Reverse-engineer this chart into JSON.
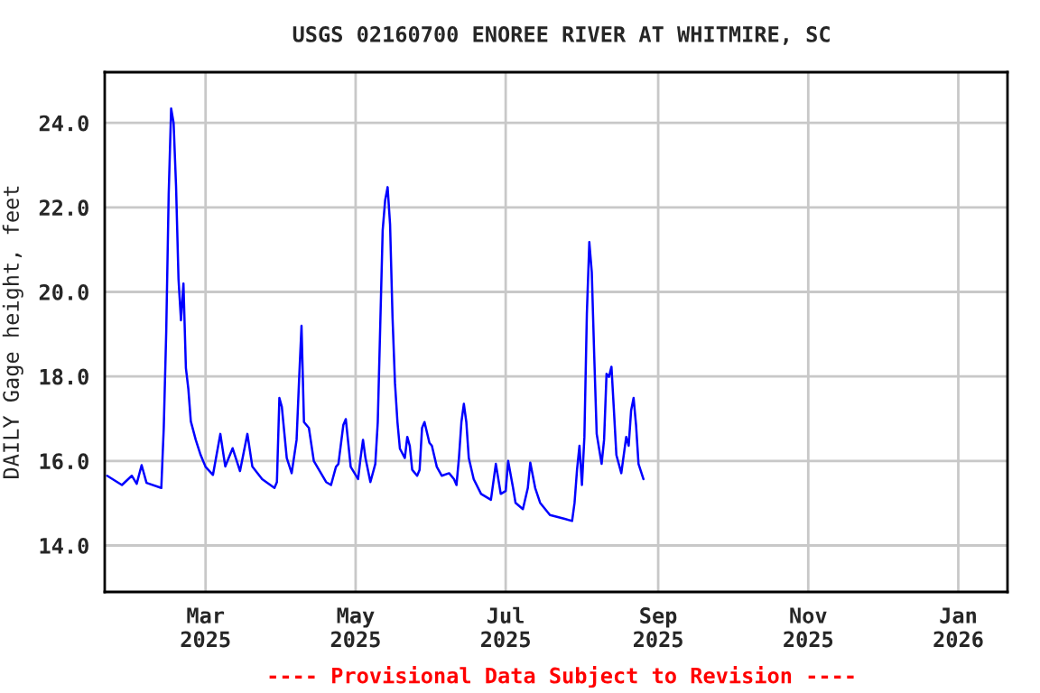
{
  "chart_data": {
    "type": "line",
    "title": "USGS 02160700 ENOREE RIVER AT WHITMIRE, SC",
    "ylabel": "DAILY Gage height, feet",
    "annotations": [
      "---- Provisional Data Subject to Revision ----"
    ],
    "x": [
      "2025-01-20",
      "2025-01-26",
      "2025-01-30",
      "2025-02-01",
      "2025-02-03",
      "2025-02-05",
      "2025-02-11",
      "2025-02-12",
      "2025-02-13",
      "2025-02-14",
      "2025-02-15",
      "2025-02-16",
      "2025-02-17",
      "2025-02-18",
      "2025-02-19",
      "2025-02-20",
      "2025-02-21",
      "2025-02-22",
      "2025-02-23",
      "2025-02-25",
      "2025-02-27",
      "2025-03-01",
      "2025-03-04",
      "2025-03-07",
      "2025-03-09",
      "2025-03-12",
      "2025-03-15",
      "2025-03-18",
      "2025-03-20",
      "2025-03-24",
      "2025-03-29",
      "2025-03-30",
      "2025-03-31",
      "2025-04-01",
      "2025-04-03",
      "2025-04-05",
      "2025-04-07",
      "2025-04-08",
      "2025-04-09",
      "2025-04-10",
      "2025-04-12",
      "2025-04-14",
      "2025-04-19",
      "2025-04-21",
      "2025-04-23",
      "2025-04-24",
      "2025-04-26",
      "2025-04-27",
      "2025-04-29",
      "2025-05-02",
      "2025-05-03",
      "2025-05-04",
      "2025-05-05",
      "2025-05-07",
      "2025-05-09",
      "2025-05-10",
      "2025-05-11",
      "2025-05-12",
      "2025-05-13",
      "2025-05-14",
      "2025-05-15",
      "2025-05-16",
      "2025-05-17",
      "2025-05-18",
      "2025-05-19",
      "2025-05-21",
      "2025-05-22",
      "2025-05-23",
      "2025-05-24",
      "2025-05-26",
      "2025-05-27",
      "2025-05-28",
      "2025-05-29",
      "2025-05-31",
      "2025-06-01",
      "2025-06-03",
      "2025-06-05",
      "2025-06-08",
      "2025-06-10",
      "2025-06-11",
      "2025-06-12",
      "2025-06-13",
      "2025-06-14",
      "2025-06-15",
      "2025-06-16",
      "2025-06-18",
      "2025-06-21",
      "2025-06-25",
      "2025-06-27",
      "2025-06-29",
      "2025-07-01",
      "2025-07-02",
      "2025-07-04",
      "2025-07-05",
      "2025-07-08",
      "2025-07-10",
      "2025-07-11",
      "2025-07-13",
      "2025-07-15",
      "2025-07-19",
      "2025-07-25",
      "2025-07-28",
      "2025-07-29",
      "2025-07-30",
      "2025-07-31",
      "2025-08-01",
      "2025-08-02",
      "2025-08-03",
      "2025-08-04",
      "2025-08-05",
      "2025-08-06",
      "2025-08-07",
      "2025-08-09",
      "2025-08-10",
      "2025-08-11",
      "2025-08-12",
      "2025-08-13",
      "2025-08-14",
      "2025-08-15",
      "2025-08-17",
      "2025-08-19",
      "2025-08-20",
      "2025-08-21",
      "2025-08-22",
      "2025-08-23",
      "2025-08-24",
      "2025-08-26"
    ],
    "series": [
      {
        "color": "#0000ff",
        "values": [
          15.65,
          15.43,
          15.65,
          15.46,
          15.9,
          15.48,
          15.36,
          16.78,
          19.05,
          22.3,
          24.34,
          24.0,
          22.5,
          20.3,
          19.33,
          20.2,
          18.2,
          17.7,
          16.94,
          16.5,
          16.14,
          15.86,
          15.67,
          16.64,
          15.87,
          16.3,
          15.76,
          16.64,
          15.87,
          15.57,
          15.36,
          15.5,
          17.49,
          17.28,
          16.07,
          15.71,
          16.5,
          17.9,
          19.2,
          16.92,
          16.78,
          16.0,
          15.5,
          15.43,
          15.86,
          15.93,
          16.85,
          16.99,
          15.86,
          15.57,
          16.07,
          16.5,
          16.07,
          15.5,
          15.93,
          16.92,
          19.19,
          21.46,
          22.17,
          22.48,
          21.6,
          19.4,
          17.84,
          16.92,
          16.29,
          16.07,
          16.57,
          16.36,
          15.79,
          15.65,
          15.79,
          16.78,
          16.92,
          16.43,
          16.36,
          15.86,
          15.65,
          15.71,
          15.57,
          15.43,
          16.07,
          16.92,
          17.35,
          16.92,
          16.07,
          15.57,
          15.22,
          15.08,
          15.93,
          15.22,
          15.29,
          16.0,
          15.36,
          15.01,
          14.86,
          15.36,
          15.96,
          15.36,
          15.01,
          14.72,
          14.63,
          14.58,
          15.01,
          15.79,
          16.36,
          15.43,
          16.57,
          19.48,
          21.18,
          20.47,
          18.48,
          16.64,
          15.93,
          16.5,
          18.06,
          17.99,
          18.23,
          17.2,
          16.14,
          15.71,
          16.57,
          16.36,
          17.2,
          17.49,
          16.85,
          15.93,
          15.57
        ]
      }
    ],
    "xlim": [
      "2025-01-19",
      "2026-01-21"
    ],
    "xticks": [
      {
        "value": "2025-03-01",
        "label": "Mar\n2025"
      },
      {
        "value": "2025-05-01",
        "label": "May\n2025"
      },
      {
        "value": "2025-07-01",
        "label": "Jul\n2025"
      },
      {
        "value": "2025-09-01",
        "label": "Sep\n2025"
      },
      {
        "value": "2025-11-01",
        "label": "Nov\n2025"
      },
      {
        "value": "2026-01-01",
        "label": "Jan\n2026"
      }
    ],
    "ylim": [
      12.9,
      25.2
    ],
    "yticks": [
      {
        "value": 14,
        "label": "14.0"
      },
      {
        "value": 16,
        "label": "16.0"
      },
      {
        "value": 18,
        "label": "18.0"
      },
      {
        "value": 20,
        "label": "20.0"
      },
      {
        "value": 22,
        "label": "22.0"
      },
      {
        "value": 24,
        "label": "24.0"
      }
    ],
    "grid": true,
    "line_style": "solid"
  }
}
